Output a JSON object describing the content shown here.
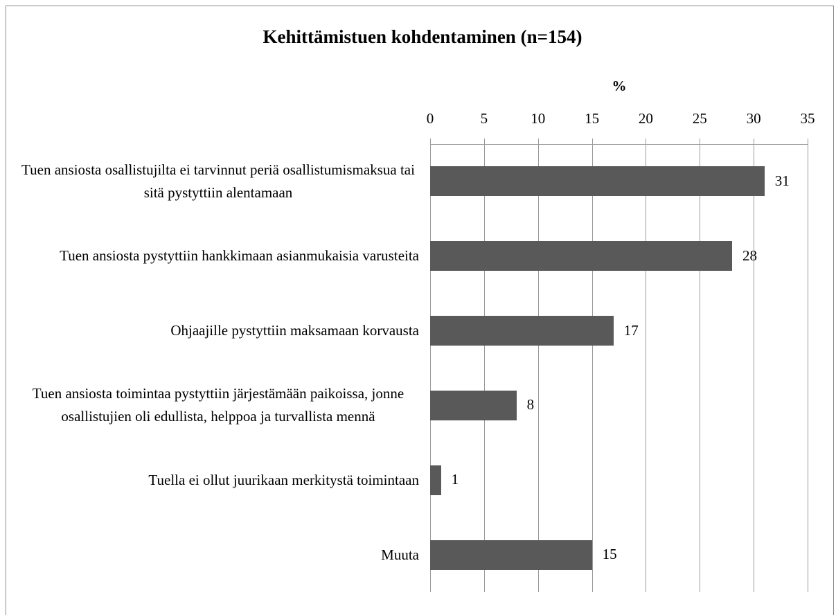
{
  "chart_data": {
    "type": "barh",
    "title": "Kehittämistuen kohdentaminen (n=154)",
    "xlabel": "%",
    "categories": [
      "Tuen ansiosta osallistujilta ei tarvinnut periä osallistumismaksua tai sitä pystyttiin alentamaan",
      "Tuen ansiosta pystyttiin hankkimaan asianmukaisia varusteita",
      "Ohjaajille pystyttiin maksamaan korvausta",
      "Tuen ansiosta toimintaa pystyttiin järjestämään paikoissa, jonne osallistujien oli edullista, helppoa ja turvallista mennä",
      "Tuella ei ollut juurikaan merkitystä toimintaan",
      "Muuta"
    ],
    "values": [
      31,
      28,
      17,
      8,
      1,
      15
    ],
    "color": "#595959",
    "xlim": [
      0,
      35
    ],
    "xticks": [
      0,
      5,
      10,
      15,
      20,
      25,
      30,
      35
    ],
    "grid": true
  }
}
